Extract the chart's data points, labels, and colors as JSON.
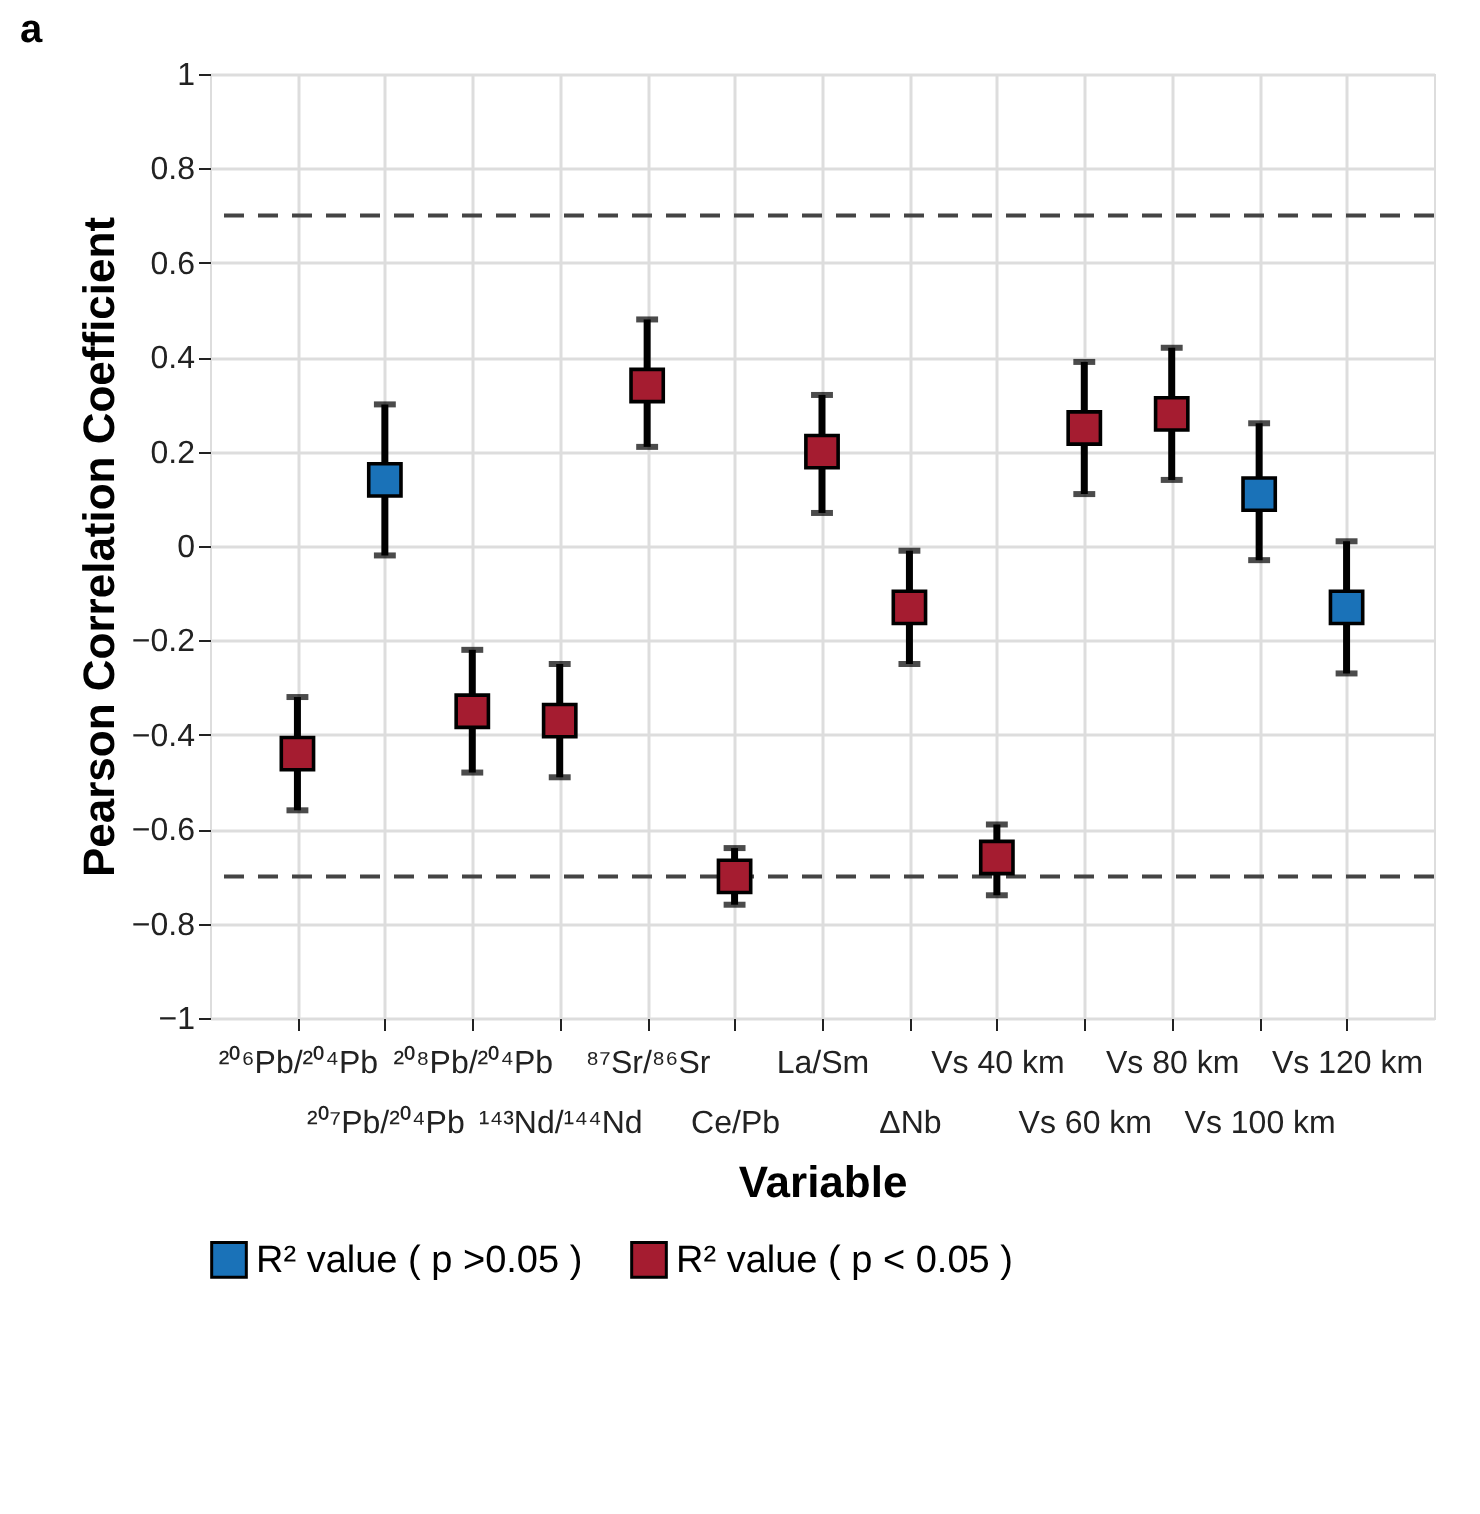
{
  "chart_data": {
    "type": "scatter",
    "title": "a",
    "xlabel": "Variable",
    "ylabel": "Pearson Correlation Coefficient",
    "categories": [
      "²⁰⁶Pb/²⁰⁴Pb",
      "²⁰⁷Pb/²⁰⁴Pb",
      "²⁰⁸Pb/²⁰⁴Pb",
      "¹⁴³Nd/¹⁴⁴Nd",
      "⁸⁷Sr/⁸⁶Sr",
      "Ce/Pb",
      "La/Sm",
      "ΔNb",
      "Vs 40 km",
      "Vs 60 km",
      "Vs 80 km",
      "Vs 100 km",
      "Vs 120 km"
    ],
    "series": [
      {
        "name": "R² value ( p >0.05 )",
        "color": "#1a72b8",
        "values": [
          null,
          0.14,
          null,
          null,
          null,
          null,
          null,
          null,
          null,
          null,
          null,
          0.11,
          -0.13
        ],
        "errors": [
          null,
          [
            -0.02,
            0.3
          ],
          null,
          null,
          null,
          null,
          null,
          null,
          null,
          null,
          null,
          [
            -0.03,
            0.26
          ],
          [
            -0.27,
            0.01
          ]
        ]
      },
      {
        "name": "R² value ( p < 0.05 )",
        "color": "#a51c30",
        "values": [
          -0.44,
          null,
          -0.35,
          -0.37,
          0.34,
          -0.7,
          0.2,
          -0.13,
          -0.66,
          0.25,
          0.28,
          null,
          null
        ],
        "errors": [
          [
            -0.56,
            -0.32
          ],
          null,
          [
            -0.48,
            -0.22
          ],
          [
            -0.49,
            -0.25
          ],
          [
            0.21,
            0.48
          ],
          [
            -0.76,
            -0.64
          ],
          [
            0.07,
            0.32
          ],
          [
            -0.25,
            -0.01
          ],
          [
            -0.74,
            -0.59
          ],
          [
            0.11,
            0.39
          ],
          [
            0.14,
            0.42
          ],
          null,
          null
        ]
      }
    ],
    "ylim": [
      -1,
      1
    ],
    "yticks": [
      -1,
      -0.8,
      -0.6,
      -0.4,
      -0.2,
      0,
      0.2,
      0.4,
      0.6,
      0.8,
      1
    ],
    "ref_lines": [
      {
        "axis": "y",
        "value": 0.7,
        "color": "#444444",
        "line_style": "dashed"
      },
      {
        "axis": "y",
        "value": -0.7,
        "color": "#444444",
        "line_style": "dashed"
      }
    ],
    "grid": true,
    "legend": "bottom",
    "marker": "square"
  }
}
